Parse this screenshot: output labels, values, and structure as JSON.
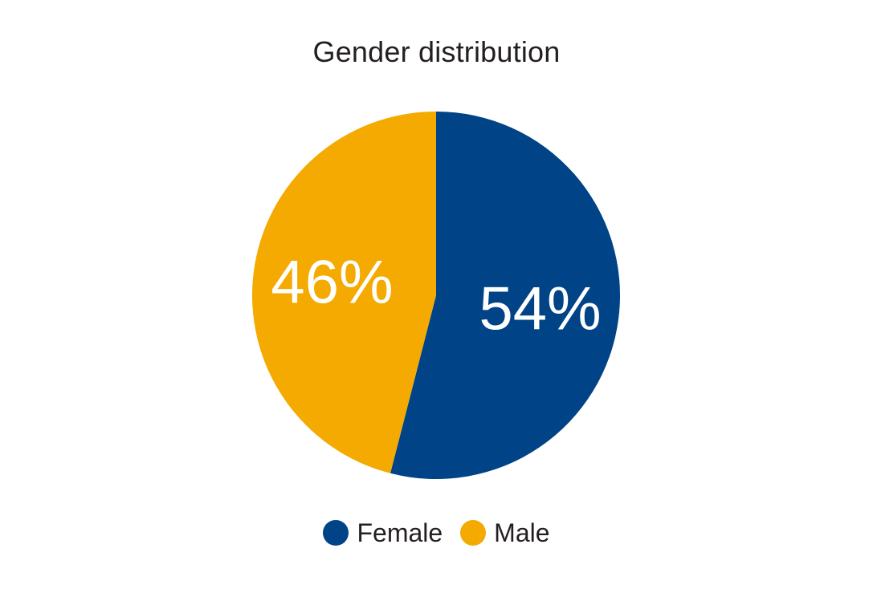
{
  "chart_data": {
    "type": "pie",
    "title": "Gender distribution",
    "categories": [
      "Female",
      "Male"
    ],
    "values": [
      54,
      46
    ],
    "labels": [
      "54%",
      "46%"
    ],
    "colors": [
      "#004386",
      "#f4aa00"
    ],
    "start": "12 o'clock, clockwise",
    "legend_position": "bottom"
  }
}
